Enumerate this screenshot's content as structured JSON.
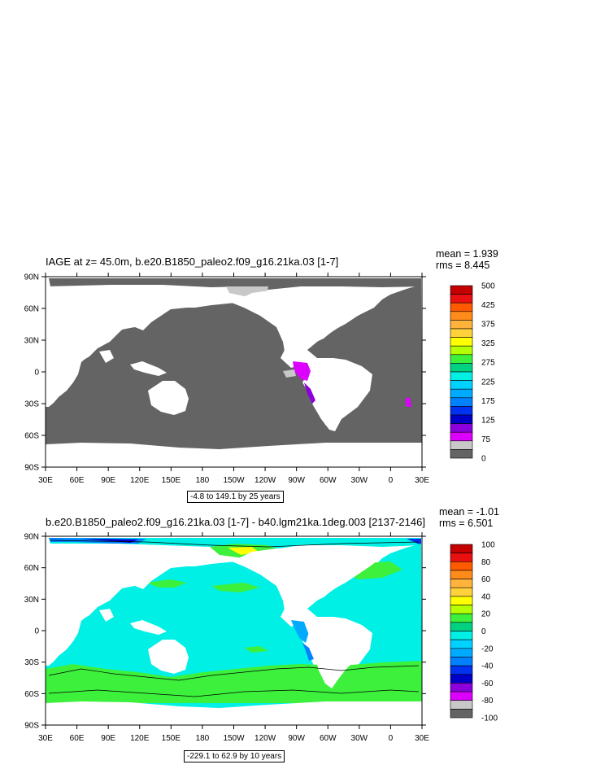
{
  "panel1": {
    "title": "IAGE at z=  45.0m, b.e20.B1850_paleo2.f09_g16.21ka.03 [1-7]",
    "mean": "mean = 1.939",
    "rms": "rms = 8.445",
    "range": "-4.8 to 149.1 by 25 years",
    "colorbar_labels": [
      "500",
      "425",
      "375",
      "325",
      "275",
      "225",
      "175",
      "125",
      "75",
      "0"
    ],
    "colorbar_colors": [
      "#c40000",
      "#e81010",
      "#ff5a00",
      "#ff8c1a",
      "#ffb23c",
      "#ffd23c",
      "#ffff00",
      "#b4ff00",
      "#3cf03c",
      "#00d282",
      "#00f0e6",
      "#00d2ff",
      "#00aaff",
      "#0082ff",
      "#0032f0",
      "#0000c8",
      "#8c00dc",
      "#dc00ff",
      "#c8c8c8",
      "#646464"
    ]
  },
  "panel2": {
    "title": "b.e20.B1850_paleo2.f09_g16.21ka.03 [1-7] - b40.lgm21ka.1deg.003 [2137-2146]",
    "mean": "mean = -1.01",
    "rms": "rms = 6.501",
    "range": "-229.1 to 62.9 by 10 years",
    "colorbar_labels": [
      "100",
      "80",
      "60",
      "40",
      "20",
      "0",
      "-20",
      "-40",
      "-60",
      "-80",
      "-100"
    ],
    "colorbar_colors": [
      "#c40000",
      "#e81010",
      "#ff5a00",
      "#ff8c1a",
      "#ffb23c",
      "#ffd23c",
      "#ffff00",
      "#b4ff00",
      "#3cf03c",
      "#00d282",
      "#00f0e6",
      "#00d2ff",
      "#00aaff",
      "#0082ff",
      "#0032f0",
      "#0000c8",
      "#8c00dc",
      "#dc00ff",
      "#c8c8c8",
      "#646464"
    ]
  },
  "axes": {
    "lat_labels": [
      "90N",
      "60N",
      "30N",
      "0",
      "30S",
      "60S",
      "90S"
    ],
    "lon_labels": [
      "30E",
      "60E",
      "90E",
      "120E",
      "150E",
      "180",
      "150W",
      "120W",
      "90W",
      "60W",
      "30W",
      "0",
      "30E"
    ]
  },
  "colors": {
    "ocean_grey": "#646464",
    "ocean_cyan": "#00f0e6",
    "contour_green": "#3cf03c",
    "land": "#ffffff"
  }
}
